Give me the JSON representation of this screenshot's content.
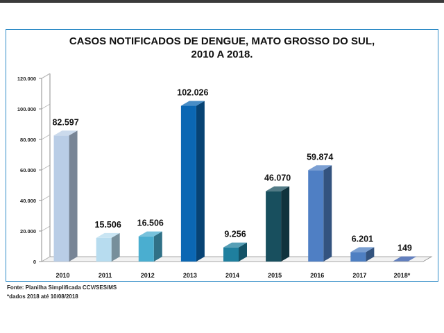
{
  "chart_data": {
    "type": "bar",
    "title": "CASOS NOTIFICADOS DE DENGUE, MATO GROSSO DO SUL,",
    "subtitle": "2010 A 2018.",
    "categories": [
      "2010",
      "2011",
      "2012",
      "2013",
      "2014",
      "2015",
      "2016",
      "2017",
      "2018*"
    ],
    "values": [
      82597,
      15506,
      16506,
      102026,
      9256,
      46070,
      59874,
      6201,
      149
    ],
    "value_labels": [
      "82.597",
      "15.506",
      "16.506",
      "102.026",
      "9.256",
      "46.070",
      "59.874",
      "6.201",
      "149"
    ],
    "ylim": [
      0,
      120000
    ],
    "yticks": [
      0,
      20000,
      40000,
      60000,
      80000,
      100000,
      120000
    ],
    "ytick_labels": [
      "0",
      "20.000",
      "40.000",
      "60.000",
      "80.000",
      "100.000",
      "120.000"
    ],
    "bar_colors": [
      "#b9cde6",
      "#b7dcef",
      "#4aaed0",
      "#0b67b3",
      "#1f7f9e",
      "#184f5e",
      "#4f7fc4",
      "#4e7fc2",
      "#2f56a8"
    ],
    "grid": false,
    "style": "3d"
  },
  "footnotes": {
    "source": "Fonte: Planilha Simplificada CCV/SES/MS",
    "note": "*dados 2018 até 10/08/2018"
  }
}
